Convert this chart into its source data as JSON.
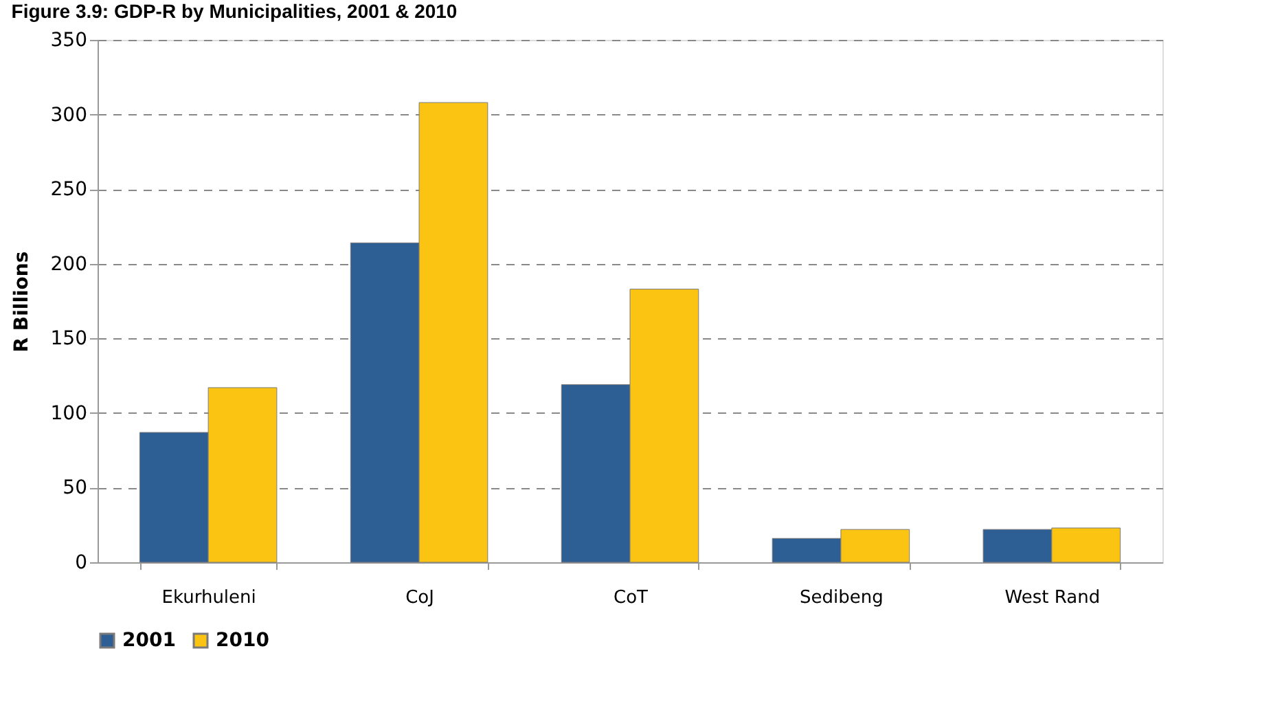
{
  "chart_data": {
    "type": "bar",
    "title": "Figure 3.9: GDP-R by Municipalities, 2001 & 2010",
    "ylabel": "R Billions",
    "categories": [
      "Ekurhuleni",
      "CoJ",
      "CoT",
      "Sedibeng",
      "West Rand"
    ],
    "series": [
      {
        "name": "2001",
        "color": "#2e5f94",
        "values": [
          87,
          214,
          119,
          16,
          22
        ]
      },
      {
        "name": "2010",
        "color": "#fbc312",
        "values": [
          117,
          308,
          183,
          22,
          23
        ]
      }
    ],
    "ylim": [
      0,
      350
    ],
    "yticks": [
      0,
      50,
      100,
      150,
      200,
      250,
      300,
      350
    ],
    "grid": "y",
    "legend": "bottom"
  }
}
